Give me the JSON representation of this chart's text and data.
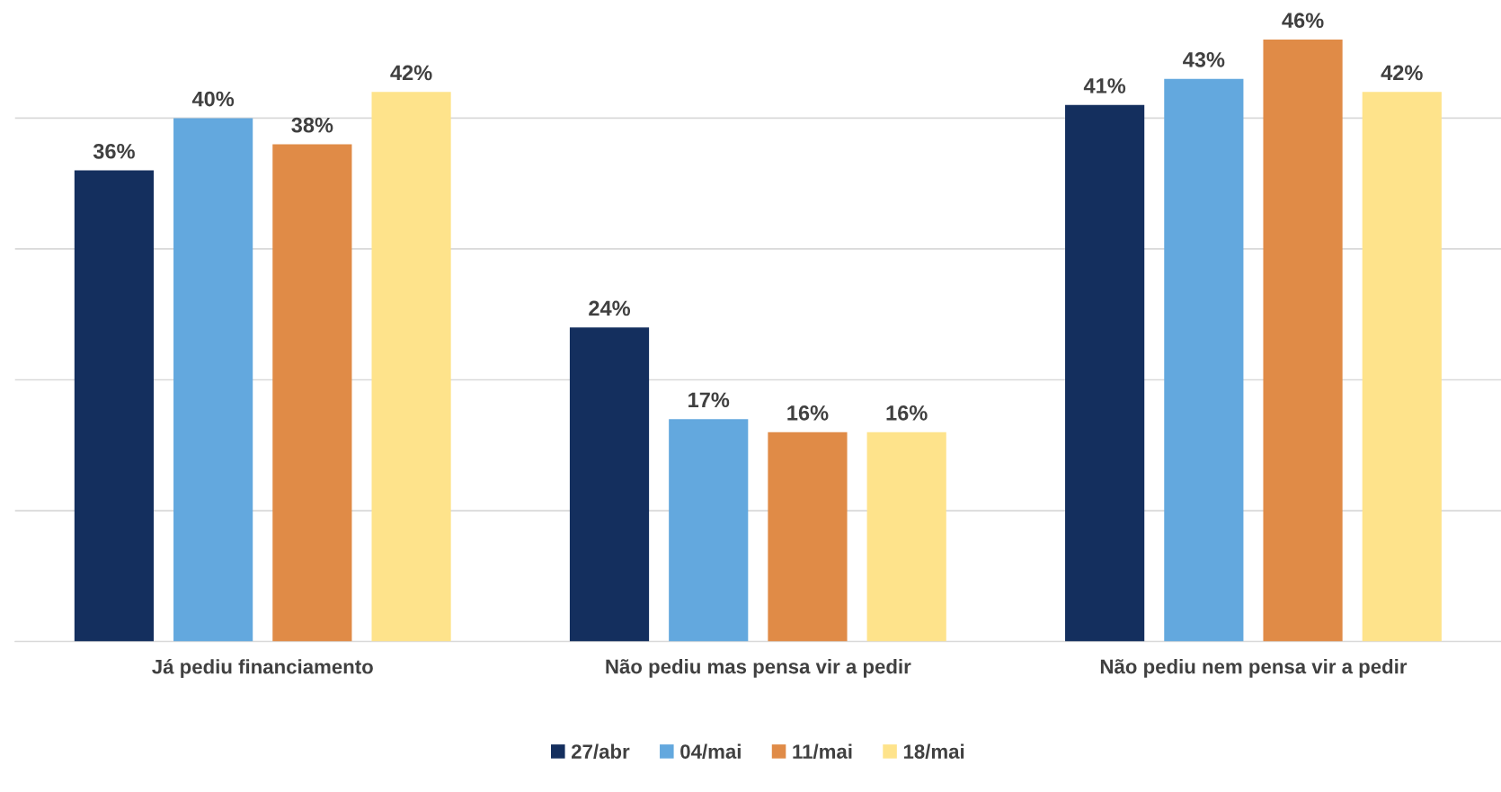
{
  "chart_data": {
    "type": "bar",
    "categories": [
      "Já pediu financiamento",
      "Não pediu mas pensa vir a pedir",
      "Não pediu nem pensa vir a pedir"
    ],
    "series": [
      {
        "name": "27/abr",
        "color": "#142f5e",
        "values": [
          36,
          24,
          41
        ],
        "value_labels": [
          "36%",
          "24%",
          "41%"
        ]
      },
      {
        "name": "04/mai",
        "color": "#63a8de",
        "values": [
          40,
          17,
          43
        ],
        "value_labels": [
          "40%",
          "17%",
          "43%"
        ]
      },
      {
        "name": "11/mai",
        "color": "#e08b47",
        "values": [
          38,
          16,
          46
        ],
        "value_labels": [
          "38%",
          "16%",
          "46%"
        ]
      },
      {
        "name": "18/mai",
        "color": "#fee38b",
        "values": [
          42,
          16,
          42
        ],
        "value_labels": [
          "42%",
          "16%",
          "42%"
        ]
      }
    ],
    "tick_labels": "x",
    "grid": "y",
    "legend": "bottom"
  }
}
